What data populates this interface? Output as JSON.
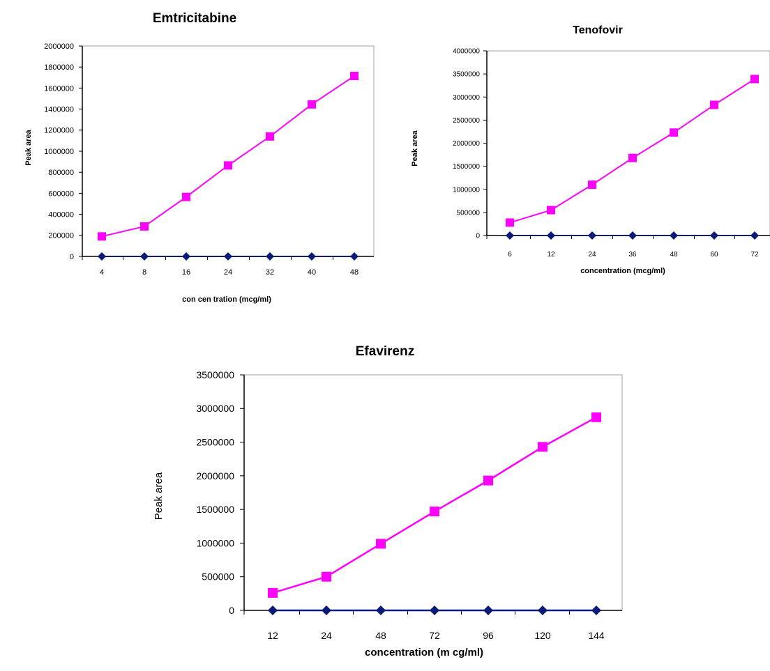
{
  "colors": {
    "series1": "#0a1a78",
    "series2": "#ff00ff",
    "axis": "#000000",
    "plot_border": "#a0a0a0"
  },
  "chart_data": [
    {
      "type": "line",
      "title": "Emtricitabine",
      "xlabel": "con cen tration (mcg/ml)",
      "ylabel": "Peak area",
      "categories": [
        "4",
        "8",
        "16",
        "24",
        "32",
        "40",
        "48"
      ],
      "y_ticks": [
        "0",
        "200000",
        "400000",
        "600000",
        "800000",
        "1000000",
        "1200000",
        "1400000",
        "1600000",
        "1800000",
        "2000000"
      ],
      "ylim": [
        0,
        2000000
      ],
      "grid": false,
      "legend": "none",
      "series": [
        {
          "values": [
            0,
            0,
            0,
            0,
            0,
            0,
            0
          ],
          "color": "#0a1a78",
          "marker": "diamond"
        },
        {
          "values": [
            190000,
            285000,
            565000,
            865000,
            1140000,
            1445000,
            1715000
          ],
          "color": "#ff00ff",
          "marker": "square"
        }
      ]
    },
    {
      "type": "line",
      "title": "Tenofovir",
      "xlabel": "concentration (mcg/ml)",
      "ylabel": "Peak area",
      "categories": [
        "6",
        "12",
        "24",
        "36",
        "48",
        "60",
        "72"
      ],
      "y_ticks": [
        "0",
        "500000",
        "1000000",
        "1500000",
        "2000000",
        "2500000",
        "3000000",
        "3500000",
        "4000000"
      ],
      "ylim": [
        0,
        4000000
      ],
      "grid": false,
      "legend": "none",
      "series": [
        {
          "values": [
            0,
            0,
            0,
            0,
            0,
            0,
            0
          ],
          "color": "#0a1a78",
          "marker": "diamond"
        },
        {
          "values": [
            280000,
            550000,
            1100000,
            1680000,
            2230000,
            2830000,
            3390000
          ],
          "color": "#ff00ff",
          "marker": "square"
        }
      ]
    },
    {
      "type": "line",
      "title": "Efavirenz",
      "xlabel": "concentration (m cg/ml)",
      "ylabel": "Peak area",
      "categories": [
        "12",
        "24",
        "48",
        "72",
        "96",
        "120",
        "144"
      ],
      "y_ticks": [
        "0",
        "500000",
        "1000000",
        "1500000",
        "2000000",
        "2500000",
        "3000000",
        "3500000"
      ],
      "ylim": [
        0,
        3500000
      ],
      "grid": false,
      "legend": "none",
      "series": [
        {
          "values": [
            0,
            0,
            0,
            0,
            0,
            0,
            0
          ],
          "color": "#0a1a78",
          "marker": "diamond"
        },
        {
          "values": [
            260000,
            500000,
            990000,
            1470000,
            1930000,
            2430000,
            2870000
          ],
          "color": "#ff00ff",
          "marker": "square"
        }
      ]
    }
  ]
}
